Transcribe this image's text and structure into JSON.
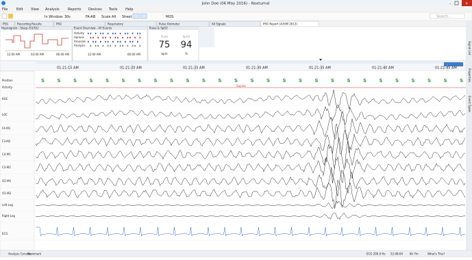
{
  "window_title": "John Doe (06 May 2016) - Noxturnal",
  "menu": [
    "File",
    "Edit",
    "View",
    "Analysis",
    "Reports",
    "Devices",
    "Tools",
    "Help"
  ],
  "toolbar": {
    "window": "In Window: 30s",
    "montage": "FA-AB",
    "scale": "Scale All",
    "sheet": "Sheet",
    "mos": "MOS",
    "search": "Search..."
  },
  "tabs": [
    "PSG",
    "Recording Results",
    "PSG",
    "Respiratory",
    "Pulse Oximeter",
    "All Signals",
    "PSG Report (AASM 2013)"
  ],
  "hypnogram": {
    "title": "Hypnogram - Sleep (S1/S1)",
    "times": [
      "12:00 AM",
      "03:00 AM",
      "06:00 AM"
    ]
  },
  "events": {
    "title": "Event Overview - All Events",
    "rows": [
      "Activity",
      "Apneas",
      "Arousals",
      "Analysis"
    ],
    "times": [
      "12:00 AM",
      "06:00 AM"
    ]
  },
  "pulse": {
    "title": "Pulse & SpO2",
    "labels": [
      "Pulse",
      "SpO2"
    ],
    "values": [
      "75",
      "94"
    ],
    "units": [
      "bpm",
      "%"
    ]
  },
  "timeline": [
    "01:21:15 AM",
    "01:21:20 AM",
    "01:21:25 AM",
    "01:21:30 AM",
    "01:21:35 AM",
    "01:21:40 AM",
    "01:21:45 AM"
  ],
  "position_marker": "S",
  "position_label": "Supine",
  "channels": [
    "Position",
    "Activity",
    "ROC",
    "LOC",
    "F4-M1",
    "F3-M2",
    "C4-M1",
    "C3-M2",
    "O2-M1",
    "O1-M2",
    "Left Leg",
    "Right Leg",
    "ECG"
  ],
  "status": {
    "left": [
      "Analysis Console",
      "Bookmark"
    ],
    "right": [
      "ECG 200.0 Hz",
      "22:08:04",
      "8h 7m",
      "What's This?"
    ]
  },
  "side_tabs": [
    "Signal List",
    "Properties",
    "Event Types"
  ]
}
